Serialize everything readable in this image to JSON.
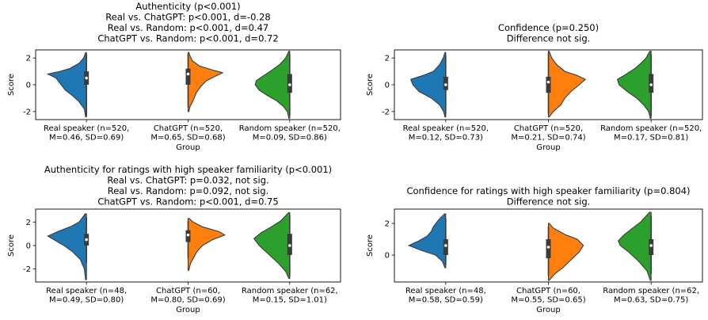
{
  "chart_data": [
    {
      "type": "violin",
      "title_lines": [
        "Authenticity (p<0.001)",
        "Real vs. ChatGPT: p<0.001, d=-0.28",
        "Real vs. Random: p<0.001, d=0.47",
        "ChatGPT vs. Random: p<0.001, d=0.72"
      ],
      "xlabel": "Group",
      "ylabel": "Score",
      "ylim": [
        -2.6,
        2.6
      ],
      "yticks": [
        -2,
        0,
        2
      ],
      "categories": [
        {
          "lines": [
            "Real speaker (n=520,",
            "M=0.46, SD=0.69)"
          ],
          "color": "#1f77b4",
          "side": "left",
          "median": 0.5,
          "q1": 0.0,
          "q3": 1.0,
          "whisker": [
            -2.3,
            2.3
          ],
          "range": [
            -2.4,
            2.4
          ],
          "density": [
            [
              -2.4,
              0.02
            ],
            [
              -1.8,
              0.05
            ],
            [
              -1.2,
              0.2
            ],
            [
              -0.8,
              0.35
            ],
            [
              -0.4,
              0.52
            ],
            [
              0,
              0.62
            ],
            [
              0.5,
              0.75
            ],
            [
              0.8,
              0.95
            ],
            [
              1.0,
              0.65
            ],
            [
              1.2,
              0.42
            ],
            [
              1.6,
              0.18
            ],
            [
              2.0,
              0.07
            ],
            [
              2.4,
              0.02
            ]
          ]
        },
        {
          "lines": [
            "ChatGPT (n=520,",
            "M=0.65, SD=0.68)"
          ],
          "color": "#ff7f0e",
          "side": "right",
          "median": 0.8,
          "q1": 0.0,
          "q3": 1.2,
          "whisker": [
            -1.7,
            2.3
          ],
          "range": [
            -2.0,
            2.4
          ],
          "density": [
            [
              -2.0,
              0.02
            ],
            [
              -1.6,
              0.05
            ],
            [
              -1.2,
              0.12
            ],
            [
              -0.6,
              0.2
            ],
            [
              -0.1,
              0.32
            ],
            [
              0.3,
              0.45
            ],
            [
              0.6,
              0.65
            ],
            [
              0.9,
              0.85
            ],
            [
              1.1,
              0.6
            ],
            [
              1.4,
              0.28
            ],
            [
              1.8,
              0.1
            ],
            [
              2.2,
              0.04
            ],
            [
              2.4,
              0.02
            ]
          ]
        },
        {
          "lines": [
            "Random speaker (n=520,",
            "M=0.09, SD=0.86)"
          ],
          "color": "#2ca02c",
          "side": "left",
          "median": 0.0,
          "q1": -0.6,
          "q3": 0.8,
          "whisker": [
            -2.3,
            2.3
          ],
          "range": [
            -2.5,
            2.5
          ],
          "density": [
            [
              -2.5,
              0.02
            ],
            [
              -2.0,
              0.06
            ],
            [
              -1.6,
              0.16
            ],
            [
              -1.2,
              0.32
            ],
            [
              -0.8,
              0.55
            ],
            [
              -0.4,
              0.75
            ],
            [
              0,
              0.85
            ],
            [
              0.3,
              0.82
            ],
            [
              0.6,
              0.68
            ],
            [
              1.0,
              0.48
            ],
            [
              1.5,
              0.25
            ],
            [
              2.0,
              0.1
            ],
            [
              2.5,
              0.02
            ]
          ]
        }
      ]
    },
    {
      "type": "violin",
      "title_lines": [
        "Confidence (p=0.250)",
        "Difference not sig."
      ],
      "xlabel": "Group",
      "ylabel": "Score",
      "ylim": [
        -2.6,
        2.6
      ],
      "yticks": [
        -2,
        0,
        2
      ],
      "categories": [
        {
          "lines": [
            "Real speaker (n=520,",
            "M=0.12, SD=0.73)"
          ],
          "color": "#1f77b4",
          "side": "left",
          "median": 0.0,
          "q1": -0.4,
          "q3": 0.6,
          "whisker": [
            -2.2,
            2.2
          ],
          "range": [
            -2.4,
            2.4
          ],
          "density": [
            [
              -2.4,
              0.02
            ],
            [
              -2.0,
              0.05
            ],
            [
              -1.5,
              0.15
            ],
            [
              -1.0,
              0.35
            ],
            [
              -0.5,
              0.65
            ],
            [
              0,
              0.8
            ],
            [
              0.4,
              0.85
            ],
            [
              0.7,
              0.55
            ],
            [
              1.0,
              0.3
            ],
            [
              1.5,
              0.15
            ],
            [
              2.0,
              0.06
            ],
            [
              2.4,
              0.02
            ]
          ]
        },
        {
          "lines": [
            "ChatGPT (n=520,",
            "M=0.21, SD=0.74)"
          ],
          "color": "#ff7f0e",
          "side": "right",
          "median": 0.2,
          "q1": -0.6,
          "q3": 0.6,
          "whisker": [
            -2.2,
            2.4
          ],
          "range": [
            -2.4,
            2.5
          ],
          "density": [
            [
              -2.4,
              0.02
            ],
            [
              -2.0,
              0.12
            ],
            [
              -1.5,
              0.3
            ],
            [
              -1.0,
              0.4
            ],
            [
              -0.5,
              0.55
            ],
            [
              0,
              0.75
            ],
            [
              0.4,
              0.9
            ],
            [
              0.7,
              0.7
            ],
            [
              1.0,
              0.4
            ],
            [
              1.5,
              0.2
            ],
            [
              2.0,
              0.08
            ],
            [
              2.5,
              0.02
            ]
          ]
        },
        {
          "lines": [
            "Random speaker (n=520,",
            "M=0.17, SD=0.81)"
          ],
          "color": "#2ca02c",
          "side": "left",
          "median": 0.0,
          "q1": -0.6,
          "q3": 0.8,
          "whisker": [
            -2.3,
            2.3
          ],
          "range": [
            -2.5,
            2.5
          ],
          "density": [
            [
              -2.5,
              0.02
            ],
            [
              -2.0,
              0.06
            ],
            [
              -1.5,
              0.18
            ],
            [
              -1.0,
              0.35
            ],
            [
              -0.5,
              0.58
            ],
            [
              0,
              0.78
            ],
            [
              0.4,
              0.82
            ],
            [
              0.8,
              0.6
            ],
            [
              1.2,
              0.4
            ],
            [
              1.6,
              0.25
            ],
            [
              2.0,
              0.12
            ],
            [
              2.5,
              0.03
            ]
          ]
        }
      ]
    },
    {
      "type": "violin",
      "title_lines": [
        "Authenticity for ratings with high speaker familiarity (p<0.001)",
        "Real vs. ChatGPT: p=0.032, not sig.",
        "Real vs. Random: p=0.092, not sig.",
        "ChatGPT vs. Random: p<0.001, d=0.75"
      ],
      "xlabel": "Group",
      "ylabel": "Score",
      "ylim": [
        -3.1,
        3.1
      ],
      "yticks": [
        -2,
        0,
        2
      ],
      "categories": [
        {
          "lines": [
            "Real speaker (n=48,",
            "M=0.49, SD=0.80)"
          ],
          "color": "#1f77b4",
          "side": "left",
          "median": 0.5,
          "q1": 0.0,
          "q3": 1.0,
          "whisker": [
            -1.5,
            2.4
          ],
          "range": [
            -2.9,
            2.7
          ],
          "density": [
            [
              -2.9,
              0.02
            ],
            [
              -2.0,
              0.05
            ],
            [
              -1.2,
              0.15
            ],
            [
              -0.5,
              0.35
            ],
            [
              0,
              0.55
            ],
            [
              0.5,
              0.8
            ],
            [
              0.8,
              0.95
            ],
            [
              1.2,
              0.7
            ],
            [
              1.6,
              0.4
            ],
            [
              2.0,
              0.18
            ],
            [
              2.7,
              0.03
            ]
          ]
        },
        {
          "lines": [
            "ChatGPT (n=60,",
            "M=0.80, SD=0.69)"
          ],
          "color": "#ff7f0e",
          "side": "right",
          "median": 0.9,
          "q1": 0.3,
          "q3": 1.3,
          "whisker": [
            -1.1,
            2.1
          ],
          "range": [
            -2.1,
            2.3
          ],
          "density": [
            [
              -2.1,
              0.02
            ],
            [
              -1.5,
              0.06
            ],
            [
              -1.0,
              0.14
            ],
            [
              -0.5,
              0.22
            ],
            [
              0,
              0.35
            ],
            [
              0.5,
              0.6
            ],
            [
              0.9,
              0.9
            ],
            [
              1.2,
              0.75
            ],
            [
              1.6,
              0.35
            ],
            [
              2.0,
              0.12
            ],
            [
              2.3,
              0.03
            ]
          ]
        },
        {
          "lines": [
            "Random speaker (n=62,",
            "M=0.15, SD=1.01)"
          ],
          "color": "#2ca02c",
          "side": "left",
          "median": 0.0,
          "q1": -0.8,
          "q3": 1.0,
          "whisker": [
            -2.6,
            2.6
          ],
          "range": [
            -2.8,
            2.8
          ],
          "density": [
            [
              -2.8,
              0.02
            ],
            [
              -2.2,
              0.1
            ],
            [
              -1.5,
              0.28
            ],
            [
              -0.8,
              0.5
            ],
            [
              0,
              0.75
            ],
            [
              0.6,
              0.88
            ],
            [
              1.1,
              0.7
            ],
            [
              1.6,
              0.45
            ],
            [
              2.1,
              0.22
            ],
            [
              2.8,
              0.03
            ]
          ]
        }
      ]
    },
    {
      "type": "violin",
      "title_lines": [
        "Confidence for ratings with high speaker familiarity (p=0.804)",
        "Difference not sig."
      ],
      "xlabel": "Group",
      "ylabel": "Score",
      "ylim": [
        -1.7,
        2.9
      ],
      "yticks": [
        0,
        2
      ],
      "categories": [
        {
          "lines": [
            "Real speaker (n=48,",
            "M=0.58, SD=0.59)"
          ],
          "color": "#1f77b4",
          "side": "left",
          "median": 0.6,
          "q1": 0.0,
          "q3": 1.0,
          "whisker": [
            -0.6,
            2.3
          ],
          "range": [
            -0.8,
            2.6
          ],
          "density": [
            [
              -0.8,
              0.02
            ],
            [
              -0.4,
              0.08
            ],
            [
              0,
              0.25
            ],
            [
              0.3,
              0.6
            ],
            [
              0.6,
              0.9
            ],
            [
              0.9,
              0.65
            ],
            [
              1.2,
              0.45
            ],
            [
              1.5,
              0.35
            ],
            [
              1.8,
              0.3
            ],
            [
              2.2,
              0.18
            ],
            [
              2.6,
              0.03
            ]
          ]
        },
        {
          "lines": [
            "ChatGPT (n=60,",
            "M=0.55, SD=0.65)"
          ],
          "color": "#ff7f0e",
          "side": "right",
          "median": 0.5,
          "q1": -0.2,
          "q3": 1.0,
          "whisker": [
            -1.3,
            1.8
          ],
          "range": [
            -1.6,
            2.0
          ],
          "density": [
            [
              -1.6,
              0.02
            ],
            [
              -1.2,
              0.15
            ],
            [
              -0.8,
              0.35
            ],
            [
              -0.3,
              0.55
            ],
            [
              0.2,
              0.75
            ],
            [
              0.6,
              0.85
            ],
            [
              1.0,
              0.7
            ],
            [
              1.3,
              0.4
            ],
            [
              1.7,
              0.12
            ],
            [
              2.0,
              0.02
            ]
          ]
        },
        {
          "lines": [
            "Random speaker (n=62,",
            "M=0.63, SD=0.75)"
          ],
          "color": "#2ca02c",
          "side": "left",
          "median": 0.6,
          "q1": 0.0,
          "q3": 1.0,
          "whisker": [
            -1.2,
            2.5
          ],
          "range": [
            -1.6,
            2.7
          ],
          "density": [
            [
              -1.6,
              0.02
            ],
            [
              -1.0,
              0.1
            ],
            [
              -0.4,
              0.3
            ],
            [
              0.2,
              0.55
            ],
            [
              0.6,
              0.75
            ],
            [
              0.9,
              0.8
            ],
            [
              1.3,
              0.65
            ],
            [
              1.7,
              0.45
            ],
            [
              2.1,
              0.25
            ],
            [
              2.7,
              0.04
            ]
          ]
        }
      ]
    }
  ]
}
